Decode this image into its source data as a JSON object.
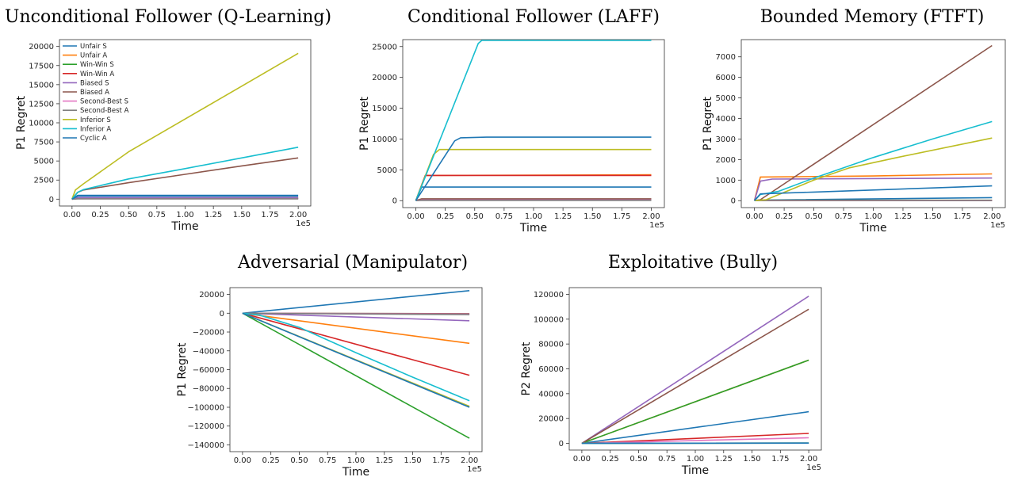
{
  "panel_labels": {
    "series_names": [
      "Unfair S",
      "Unfair A",
      "Win-Win S",
      "Win-Win A",
      "Biased S",
      "Biased A",
      "Second-Best S",
      "Second-Best A",
      "Inferior S",
      "Inferior A",
      "Cyclic A"
    ],
    "series_colors": [
      "#1f77b4",
      "#ff7f0e",
      "#2ca02c",
      "#d62728",
      "#9467bd",
      "#8c564b",
      "#e377c2",
      "#7f7f7f",
      "#bcbd22",
      "#17becf",
      "#1f77b4"
    ]
  },
  "chart_data": [
    {
      "type": "line",
      "title": "Unconditional Follower (Q-Learning)",
      "xlabel": "Time",
      "ylabel": "P1 Regret",
      "x_multiplier": "1e5",
      "xlim": [
        0,
        2.0
      ],
      "ylim": [
        0,
        20000
      ],
      "xticks": [
        "0.00",
        "0.25",
        "0.50",
        "0.75",
        "1.00",
        "1.25",
        "1.50",
        "1.75",
        "2.00"
      ],
      "yticks": [
        "0",
        "2500",
        "5000",
        "7500",
        "10000",
        "12500",
        "15000",
        "17500",
        "20000"
      ],
      "legend": "upper-left",
      "series": [
        {
          "name": "Unfair S",
          "x": [
            0,
            0.05,
            2.0
          ],
          "y": [
            0,
            500,
            500
          ]
        },
        {
          "name": "Unfair A",
          "x": [
            0,
            0.05,
            2.0
          ],
          "y": [
            0,
            150,
            200
          ]
        },
        {
          "name": "Win-Win S",
          "x": [
            0,
            0.05,
            2.0
          ],
          "y": [
            0,
            100,
            100
          ]
        },
        {
          "name": "Win-Win A",
          "x": [
            0,
            0.05,
            2.0
          ],
          "y": [
            0,
            80,
            80
          ]
        },
        {
          "name": "Biased S",
          "x": [
            0,
            0.05,
            2.0
          ],
          "y": [
            0,
            200,
            200
          ]
        },
        {
          "name": "Biased A",
          "x": [
            0,
            0.05,
            0.1,
            0.5,
            1.0,
            1.5,
            2.0
          ],
          "y": [
            0,
            900,
            1200,
            2150,
            3250,
            4350,
            5400
          ]
        },
        {
          "name": "Second-Best S",
          "x": [
            0,
            0.05,
            2.0
          ],
          "y": [
            0,
            60,
            60
          ]
        },
        {
          "name": "Second-Best A",
          "x": [
            0,
            0.05,
            2.0
          ],
          "y": [
            0,
            40,
            40
          ]
        },
        {
          "name": "Inferior S",
          "x": [
            0,
            0.03,
            0.1,
            0.5,
            1.0,
            1.5,
            2.0
          ],
          "y": [
            0,
            1200,
            2000,
            6200,
            10500,
            14800,
            19100
          ]
        },
        {
          "name": "Inferior A",
          "x": [
            0,
            0.05,
            0.1,
            0.5,
            1.0,
            1.5,
            2.0
          ],
          "y": [
            0,
            900,
            1250,
            2650,
            4000,
            5400,
            6800
          ]
        },
        {
          "name": "Cyclic A",
          "x": [
            0,
            0.05,
            2.0
          ],
          "y": [
            0,
            400,
            400
          ]
        }
      ]
    },
    {
      "type": "line",
      "title": "Conditional Follower (LAFF)",
      "xlabel": "Time",
      "ylabel": "P1 Regret",
      "x_multiplier": "1e5",
      "xlim": [
        0,
        2.0
      ],
      "ylim": [
        0,
        25000
      ],
      "xticks": [
        "0.00",
        "0.25",
        "0.50",
        "0.75",
        "1.00",
        "1.25",
        "1.50",
        "1.75",
        "2.00"
      ],
      "yticks": [
        "0",
        "5000",
        "10000",
        "15000",
        "20000",
        "25000"
      ],
      "series": [
        {
          "name": "Unfair S",
          "x": [
            0,
            0.05,
            2.0
          ],
          "y": [
            0,
            2200,
            2200
          ]
        },
        {
          "name": "Unfair A",
          "x": [
            0,
            0.08,
            2.0
          ],
          "y": [
            0,
            4100,
            4200
          ]
        },
        {
          "name": "Win-Win S",
          "x": [
            0,
            0.05,
            2.0
          ],
          "y": [
            0,
            150,
            150
          ]
        },
        {
          "name": "Win-Win A",
          "x": [
            0,
            0.08,
            2.0
          ],
          "y": [
            0,
            4100,
            4100
          ]
        },
        {
          "name": "Biased S",
          "x": [
            0,
            0.05,
            2.0
          ],
          "y": [
            0,
            250,
            250
          ]
        },
        {
          "name": "Biased A",
          "x": [
            0,
            0.05,
            2.0
          ],
          "y": [
            0,
            300,
            300
          ]
        },
        {
          "name": "Second-Best S",
          "x": [
            0,
            0.05,
            2.0
          ],
          "y": [
            0,
            100,
            100
          ]
        },
        {
          "name": "Second-Best A",
          "x": [
            0,
            0.05,
            2.0
          ],
          "y": [
            0,
            50,
            50
          ]
        },
        {
          "name": "Inferior S",
          "x": [
            0,
            0.15,
            0.2,
            2.0
          ],
          "y": [
            0,
            7500,
            8300,
            8300
          ]
        },
        {
          "name": "Inferior A",
          "x": [
            0,
            0.53,
            0.56,
            2.0
          ],
          "y": [
            0,
            25500,
            26000,
            26000
          ]
        },
        {
          "name": "Cyclic A",
          "x": [
            0,
            0.33,
            0.38,
            0.6,
            2.0
          ],
          "y": [
            0,
            9700,
            10200,
            10300,
            10300
          ]
        }
      ]
    },
    {
      "type": "line",
      "title": "Bounded Memory (FTFT)",
      "xlabel": "Time",
      "ylabel": "P1 Regret",
      "x_multiplier": "1e5",
      "xlim": [
        0,
        2.0
      ],
      "ylim": [
        0,
        7500
      ],
      "xticks": [
        "0.00",
        "0.25",
        "0.50",
        "0.75",
        "1.00",
        "1.25",
        "1.50",
        "1.75",
        "2.00"
      ],
      "yticks": [
        "0",
        "1000",
        "2000",
        "3000",
        "4000",
        "5000",
        "6000",
        "7000"
      ],
      "series": [
        {
          "name": "Unfair S",
          "x": [
            0,
            0.05,
            2.0
          ],
          "y": [
            0,
            30,
            150
          ]
        },
        {
          "name": "Unfair A",
          "x": [
            0,
            0.05,
            1.0,
            2.0
          ],
          "y": [
            0,
            1150,
            1200,
            1300
          ]
        },
        {
          "name": "Win-Win S",
          "x": [
            0,
            0.05,
            2.0
          ],
          "y": [
            0,
            20,
            20
          ]
        },
        {
          "name": "Win-Win A",
          "x": [
            0,
            0.05,
            2.0
          ],
          "y": [
            0,
            10,
            10
          ]
        },
        {
          "name": "Biased S",
          "x": [
            0,
            0.05,
            0.15,
            2.0
          ],
          "y": [
            0,
            950,
            1050,
            1100
          ]
        },
        {
          "name": "Biased A",
          "x": [
            0,
            0.05,
            2.0
          ],
          "y": [
            0,
            50,
            7550
          ]
        },
        {
          "name": "Second-Best S",
          "x": [
            0,
            0.05,
            2.0
          ],
          "y": [
            0,
            15,
            15
          ]
        },
        {
          "name": "Second-Best A",
          "x": [
            0,
            0.05,
            2.0
          ],
          "y": [
            0,
            5,
            5
          ]
        },
        {
          "name": "Inferior S",
          "x": [
            0,
            0.1,
            0.5,
            0.8,
            1.2,
            2.0
          ],
          "y": [
            0,
            50,
            1000,
            1600,
            2100,
            3050
          ]
        },
        {
          "name": "Inferior A",
          "x": [
            0,
            0.05,
            0.2,
            0.5,
            1.0,
            1.5,
            2.0
          ],
          "y": [
            0,
            300,
            450,
            1100,
            2100,
            3000,
            3850
          ]
        },
        {
          "name": "Cyclic A",
          "x": [
            0,
            0.05,
            0.5,
            1.0,
            1.5,
            2.0
          ],
          "y": [
            0,
            330,
            420,
            520,
            620,
            720
          ]
        }
      ]
    },
    {
      "type": "line",
      "title": "Adversarial (Manipulator)",
      "xlabel": "Time",
      "ylabel": "P1 Regret",
      "x_multiplier": "1e5",
      "xlim": [
        0,
        2.0
      ],
      "ylim": [
        -140000,
        20000
      ],
      "xticks": [
        "0.00",
        "0.25",
        "0.50",
        "0.75",
        "1.00",
        "1.25",
        "1.50",
        "1.75",
        "2.00"
      ],
      "yticks": [
        "20000",
        "0",
        "−20000",
        "−40000",
        "−60000",
        "−80000",
        "−100000",
        "−120000",
        "−140000"
      ],
      "series": [
        {
          "name": "Unfair S",
          "x": [
            0,
            2.0
          ],
          "y": [
            0,
            24000
          ]
        },
        {
          "name": "Unfair A",
          "x": [
            0,
            2.0
          ],
          "y": [
            0,
            -32000
          ]
        },
        {
          "name": "Win-Win S",
          "x": [
            0,
            2.0
          ],
          "y": [
            0,
            -133000
          ]
        },
        {
          "name": "Win-Win A",
          "x": [
            0,
            2.0
          ],
          "y": [
            0,
            -66000
          ]
        },
        {
          "name": "Biased S",
          "x": [
            0,
            2.0
          ],
          "y": [
            0,
            -8000
          ]
        },
        {
          "name": "Biased A",
          "x": [
            0,
            2.0
          ],
          "y": [
            0,
            -500
          ]
        },
        {
          "name": "Second-Best S",
          "x": [
            0,
            2.0
          ],
          "y": [
            0,
            -1000
          ]
        },
        {
          "name": "Second-Best A",
          "x": [
            0,
            2.0
          ],
          "y": [
            0,
            -1500
          ]
        },
        {
          "name": "Inferior S",
          "x": [
            0,
            2.0
          ],
          "y": [
            0,
            -99000
          ]
        },
        {
          "name": "Inferior A",
          "x": [
            0,
            0.15,
            0.5,
            1.0,
            1.5,
            2.0
          ],
          "y": [
            0,
            -2000,
            -15000,
            -42000,
            -68000,
            -93000
          ]
        },
        {
          "name": "Cyclic A",
          "x": [
            0,
            2.0
          ],
          "y": [
            0,
            -100000
          ]
        }
      ]
    },
    {
      "type": "line",
      "title": "Exploitative (Bully)",
      "xlabel": "Time",
      "ylabel": "P2 Regret",
      "x_multiplier": "1e5",
      "xlim": [
        0,
        2.0
      ],
      "ylim": [
        0,
        120000
      ],
      "xticks": [
        "0.00",
        "0.25",
        "0.50",
        "0.75",
        "1.00",
        "1.25",
        "1.50",
        "1.75",
        "2.00"
      ],
      "yticks": [
        "0",
        "20000",
        "40000",
        "60000",
        "80000",
        "100000",
        "120000"
      ],
      "series": [
        {
          "name": "Unfair S",
          "x": [
            0,
            2.0
          ],
          "y": [
            0,
            25500
          ]
        },
        {
          "name": "Unfair A",
          "x": [
            0,
            2.0
          ],
          "y": [
            0,
            67000
          ]
        },
        {
          "name": "Win-Win S",
          "x": [
            0,
            2.0
          ],
          "y": [
            0,
            67000
          ]
        },
        {
          "name": "Win-Win A",
          "x": [
            0,
            2.0
          ],
          "y": [
            0,
            8000
          ]
        },
        {
          "name": "Biased S",
          "x": [
            0,
            2.0
          ],
          "y": [
            0,
            118500
          ]
        },
        {
          "name": "Biased A",
          "x": [
            0,
            2.0
          ],
          "y": [
            0,
            108000
          ]
        },
        {
          "name": "Second-Best S",
          "x": [
            0,
            2.0
          ],
          "y": [
            0,
            4500
          ]
        },
        {
          "name": "Second-Best A",
          "x": [
            0,
            2.0
          ],
          "y": [
            0,
            200
          ]
        },
        {
          "name": "Inferior S",
          "x": [
            0,
            2.0
          ],
          "y": [
            0,
            200
          ]
        },
        {
          "name": "Inferior A",
          "x": [
            0,
            2.0
          ],
          "y": [
            0,
            200
          ]
        },
        {
          "name": "Cyclic A",
          "x": [
            0,
            2.0
          ],
          "y": [
            0,
            200
          ]
        }
      ]
    }
  ]
}
